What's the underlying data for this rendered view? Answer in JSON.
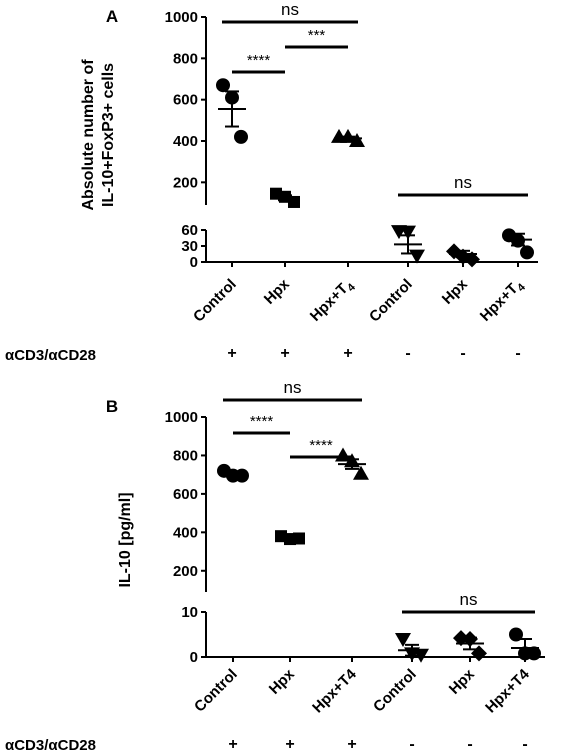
{
  "chart_data": [
    {
      "panel": "A",
      "type": "scatter",
      "ylabel_lines": [
        "Absolute number of",
        "IL-10+FoxP3+ cells"
      ],
      "categories": [
        "Control",
        "Hpx",
        "Hpx+T4",
        "Control",
        "Hpx",
        "Hpx+T4"
      ],
      "subscript_categories": [
        2,
        5
      ],
      "upper_ticks": [
        "200",
        "400",
        "600",
        "800",
        "1000"
      ],
      "lower_ticks": [
        "0",
        "30",
        "60"
      ],
      "upper_range": [
        100,
        1000
      ],
      "lower_range": [
        0,
        60
      ],
      "markers": [
        "circle",
        "square",
        "triangle-up",
        "triangle-down",
        "diamond",
        "circle"
      ],
      "points": [
        [
          670,
          610,
          420
        ],
        [
          145,
          130,
          105
        ],
        [
          420,
          420,
          400
        ],
        [
          58,
          57,
          12
        ],
        [
          20,
          10,
          5
        ],
        [
          50,
          40,
          18
        ]
      ],
      "means": [
        555,
        125,
        413,
        33,
        15,
        42
      ],
      "sems": [
        85,
        12,
        8,
        17,
        6,
        11
      ],
      "stimulation_label": "αCD3/αCD28",
      "stimulation": [
        "+",
        "+",
        "+",
        "-",
        "-",
        "-"
      ],
      "significance": [
        {
          "from": 0,
          "to": 2,
          "label": "ns"
        },
        {
          "from": 0,
          "to": 1,
          "label": "****"
        },
        {
          "from": 1,
          "to": 2,
          "label": "***"
        },
        {
          "from": 3,
          "to": 5,
          "label": "ns"
        }
      ]
    },
    {
      "panel": "B",
      "type": "scatter",
      "ylabel_lines": [
        "IL-10 [pg/ml]"
      ],
      "categories": [
        "Control",
        "Hpx",
        "Hpx+T4",
        "Control",
        "Hpx",
        "Hpx+T4"
      ],
      "subscript_categories": [],
      "upper_ticks": [
        "200",
        "400",
        "600",
        "800",
        "1000"
      ],
      "lower_ticks": [
        "0",
        "10"
      ],
      "upper_range": [
        100,
        1000
      ],
      "lower_range": [
        0,
        10
      ],
      "markers": [
        "circle",
        "square",
        "triangle-up",
        "triangle-down",
        "diamond",
        "circle"
      ],
      "points": [
        [
          720,
          695,
          695
        ],
        [
          380,
          365,
          368
        ],
        [
          800,
          770,
          705
        ],
        [
          4,
          0.8,
          0.5
        ],
        [
          4.2,
          4,
          0.8
        ],
        [
          5,
          0.8,
          0.8
        ]
      ],
      "means": [
        700,
        372,
        755,
        1.5,
        3,
        2
      ],
      "sems": [
        10,
        5,
        25,
        1.2,
        1.3,
        2
      ],
      "stimulation_label": "αCD3/αCD28",
      "stimulation": [
        "+",
        "+",
        "+",
        "-",
        "-",
        "-"
      ],
      "significance": [
        {
          "from": 0,
          "to": 2,
          "label": "ns"
        },
        {
          "from": 0,
          "to": 1,
          "label": "****"
        },
        {
          "from": 1,
          "to": 2,
          "label": "****"
        },
        {
          "from": 3,
          "to": 5,
          "label": "ns"
        }
      ]
    }
  ]
}
